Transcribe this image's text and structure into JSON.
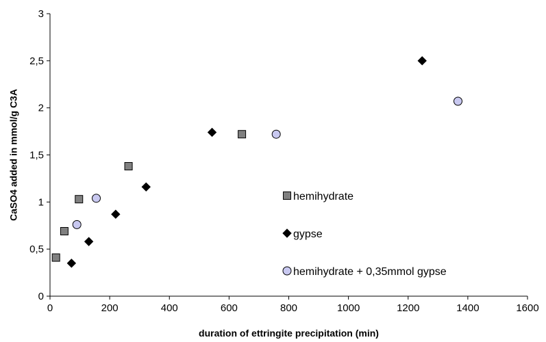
{
  "chart_data": {
    "type": "scatter",
    "title": "",
    "xlabel": "duration of ettringite precipitation (min)",
    "ylabel": "CaSO4 added in  mmol/g C3A",
    "xlim": [
      0,
      1600
    ],
    "ylim": [
      0,
      3
    ],
    "xticks": [
      "0",
      "200",
      "400",
      "600",
      "800",
      "1000",
      "1200",
      "1400",
      "1600"
    ],
    "yticks": [
      "0",
      "0,5",
      "1",
      "1,5",
      "2",
      "2,5",
      "3"
    ],
    "grid": false,
    "legend": "inside-right",
    "series": [
      {
        "name": "hemihydrate",
        "marker": "square",
        "color": "#808080",
        "points": [
          [
            20,
            0.41
          ],
          [
            48,
            0.69
          ],
          [
            97,
            1.03
          ],
          [
            263,
            1.38
          ],
          [
            643,
            1.72
          ]
        ]
      },
      {
        "name": "gypse",
        "marker": "diamond",
        "color": "#000000",
        "points": [
          [
            72,
            0.35
          ],
          [
            130,
            0.58
          ],
          [
            220,
            0.87
          ],
          [
            322,
            1.16
          ],
          [
            543,
            1.74
          ],
          [
            1247,
            2.5
          ]
        ]
      },
      {
        "name": "hemihydrate + 0,35mmol gypse",
        "marker": "circle",
        "color": "#c8c8f0",
        "points": [
          [
            90,
            0.76
          ],
          [
            155,
            1.04
          ],
          [
            758,
            1.72
          ],
          [
            1367,
            2.07
          ]
        ]
      }
    ]
  }
}
